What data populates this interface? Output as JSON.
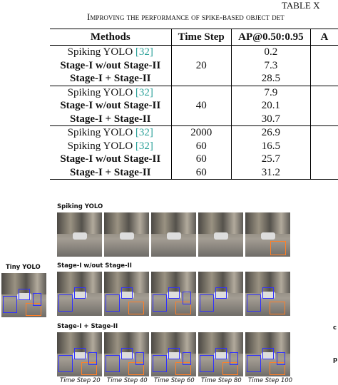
{
  "caption": {
    "label": "TABLE X",
    "title": "Improving the performance of spike-based object det"
  },
  "table": {
    "headers": [
      "Methods",
      "Time Step",
      "AP@0.50:0.95",
      "A"
    ],
    "groups": [
      {
        "time_step": "20",
        "rows": [
          {
            "method": "Spiking YOLO",
            "ref": "[32]",
            "ap": "0.2"
          },
          {
            "method": "Stage-I w/out Stage-II",
            "bold": true,
            "ap": "7.3"
          },
          {
            "method": "Stage-I + Stage-II",
            "bold": true,
            "ap": "28.5"
          }
        ]
      },
      {
        "time_step": "40",
        "rows": [
          {
            "method": "Spiking YOLO",
            "ref": "[32]",
            "ap": "7.9"
          },
          {
            "method": "Stage-I w/out Stage-II",
            "bold": true,
            "ap": "20.1"
          },
          {
            "method": "Stage-I + Stage-II",
            "bold": true,
            "ap": "30.7"
          }
        ]
      },
      {
        "rows": [
          {
            "method": "Spiking YOLO",
            "ref": "[32]",
            "time_step": "2000",
            "ap": "26.9"
          },
          {
            "method": "Spiking YOLO",
            "ref": "[32]",
            "time_step": "60",
            "ap": "16.5"
          },
          {
            "method": "Stage-I w/out Stage-II",
            "bold": true,
            "time_step": "60",
            "ap": "25.7"
          },
          {
            "method": "Stage-I + Stage-II",
            "bold": true,
            "time_step": "60",
            "ap": "31.2"
          }
        ]
      }
    ]
  },
  "figure": {
    "rows": [
      "Spiking YOLO",
      "Stage-I w/out Stage-II",
      "Stage-I + Stage-II"
    ],
    "baseline_label": "Tiny YOLO",
    "time_steps": [
      "Time Step 20",
      "Time Step 40",
      "Time Step 60",
      "Time Step 80",
      "Time Step 100"
    ],
    "margin_fragments": [
      "c",
      "p"
    ]
  }
}
